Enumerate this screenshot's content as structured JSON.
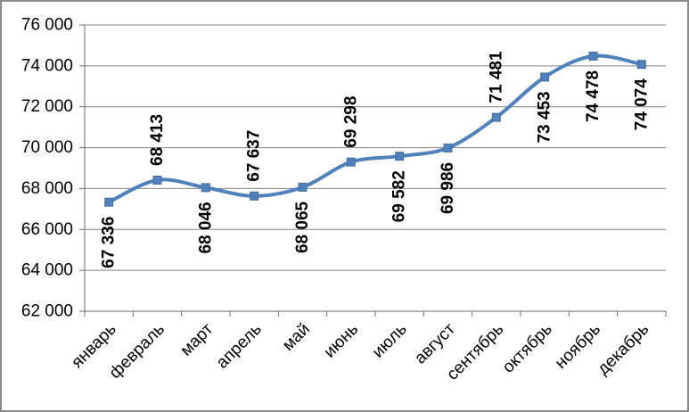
{
  "chart_data": {
    "type": "line",
    "title": "",
    "xlabel": "",
    "ylabel": "",
    "categories": [
      "январь",
      "февраль",
      "март",
      "апрель",
      "май",
      "июнь",
      "июль",
      "август",
      "сентябрь",
      "октябрь",
      "ноябрь",
      "декабрь"
    ],
    "series": [
      {
        "name": "",
        "values": [
          67336,
          68413,
          68046,
          67637,
          68065,
          69298,
          69582,
          69986,
          71481,
          73453,
          74478,
          74074
        ],
        "point_labels": [
          "67 336",
          "68 413",
          "68 046",
          "67 637",
          "68 065",
          "69 298",
          "69 582",
          "69 986",
          "71 481",
          "73 453",
          "74 478",
          "74 074"
        ],
        "label_positions": [
          "below",
          "above",
          "below",
          "above",
          "below",
          "above",
          "below",
          "below",
          "above",
          "below",
          "below",
          "below"
        ]
      }
    ],
    "ylim": [
      62000,
      76000
    ],
    "ytick_step": 2000,
    "ytick_labels": [
      "62 000",
      "64 000",
      "66 000",
      "68 000",
      "70 000",
      "72 000",
      "74 000",
      "76 000"
    ],
    "grid": true,
    "smooth": true,
    "legend": "none",
    "colors": {
      "line": "#4f81bd",
      "marker": "#4f81bd",
      "marker_border": "#44719f",
      "gridline": "#808080",
      "axis": "#6e6e6e",
      "label_text": "#000000",
      "frame_border": "#8c8c8c",
      "background": "#ffffff"
    }
  }
}
